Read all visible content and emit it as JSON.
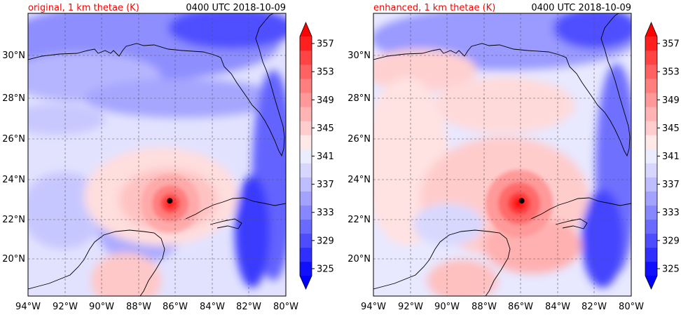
{
  "panels": [
    {
      "title": "original, 1 km thetae (K)",
      "timestamp": "0400 UTC 2018-10-09",
      "storm_center": {
        "lon": -86.3,
        "lat": 22.85
      }
    },
    {
      "title": "enhanced, 1 km thetae (K)",
      "timestamp": "0400 UTC 2018-10-09",
      "storm_center": {
        "lon": -85.95,
        "lat": 22.85
      }
    }
  ],
  "map_extent": {
    "lon": [
      -94,
      -80
    ],
    "lat": [
      18.2,
      32
    ]
  },
  "lon_ticks": [
    "94°W",
    "92°W",
    "90°W",
    "88°W",
    "86°W",
    "84°W",
    "82°W",
    "80°W"
  ],
  "lon_tick_values": [
    -94,
    -92,
    -90,
    -88,
    -86,
    -84,
    -82,
    -80
  ],
  "lat_ticks": [
    "20°N",
    "22°N",
    "24°N",
    "26°N",
    "28°N",
    "30°N"
  ],
  "lat_tick_values": [
    20,
    22,
    24,
    26,
    28,
    30
  ],
  "colorbar": {
    "tick_labels": [
      "325",
      "329",
      "333",
      "337",
      "341",
      "345",
      "349",
      "353",
      "357"
    ],
    "tick_values": [
      325,
      329,
      333,
      337,
      341,
      345,
      349,
      353,
      357
    ],
    "levels": [
      325,
      327,
      329,
      331,
      333,
      335,
      337,
      339,
      341,
      343,
      345,
      347,
      349,
      351,
      353,
      355,
      357,
      359
    ],
    "colors": [
      "#1010ff",
      "#2f2fff",
      "#4d4dff",
      "#6a6aff",
      "#8787ff",
      "#a3a3ff",
      "#bdbdff",
      "#d6d6ff",
      "#ececff",
      "#ffe8e8",
      "#ffcdcd",
      "#ffb3b3",
      "#ff9999",
      "#ff7f7f",
      "#ff6262",
      "#ff4444",
      "#ff1f1f"
    ],
    "extend": "both"
  },
  "colors": {
    "title_red": "#ff0000",
    "gridline": "#555555",
    "coast": "#000000"
  }
}
